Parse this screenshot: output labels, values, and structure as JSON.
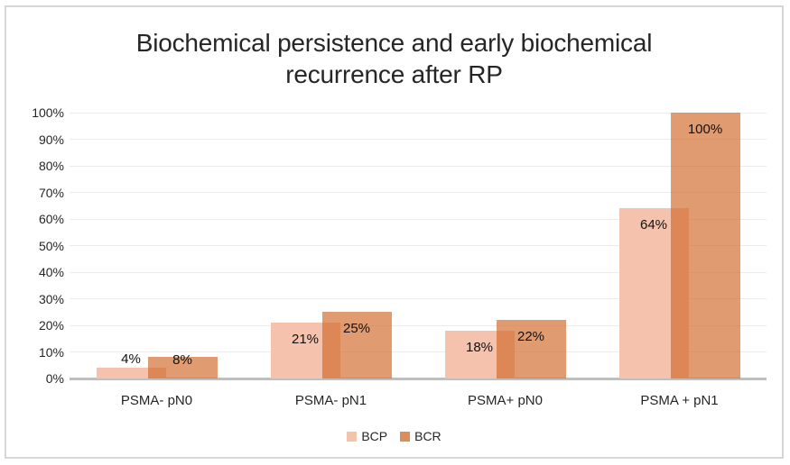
{
  "chart_data": {
    "type": "bar",
    "title": "Biochemical persistence and early biochemical recurrence after RP",
    "categories": [
      "PSMA- pN0",
      "PSMA- pN1",
      "PSMA+ pN0",
      "PSMA + pN1"
    ],
    "series": [
      {
        "name": "BCP",
        "values": [
          4,
          21,
          18,
          64
        ],
        "data_labels": [
          "4%",
          "21%",
          "18%",
          "64%"
        ]
      },
      {
        "name": "BCR",
        "values": [
          8,
          25,
          22,
          100
        ],
        "data_labels": [
          "8%",
          "25%",
          "22%",
          "100%"
        ]
      }
    ],
    "xlabel": "",
    "ylabel": "",
    "ylim": [
      0,
      100
    ],
    "y_ticks": [
      "0%",
      "10%",
      "20%",
      "30%",
      "40%",
      "50%",
      "60%",
      "70%",
      "80%",
      "90%",
      "100%"
    ],
    "grid": true,
    "legend_position": "bottom",
    "bar_style": "overlapping",
    "data_label_position": "inside-end"
  },
  "colors": {
    "bcp_fill": "#f4c2ad",
    "bcr_fill": "rgba(209,107,45,0.68)",
    "bcp_legend": "#f3c3ac",
    "bcr_legend": "#dd8c5a",
    "gridline": "#ececec",
    "axis_line": "#bfbfbf",
    "title_text": "#262626",
    "label_text": "#111111",
    "frame_border": "#d6d6d6"
  }
}
